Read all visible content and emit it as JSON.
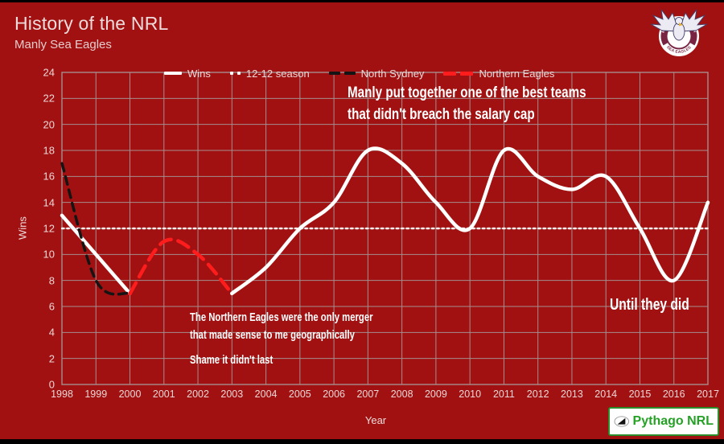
{
  "page": {
    "title": "History of the NRL",
    "subtitle": "Manly Sea Eagles"
  },
  "branding": {
    "team_badge_icon": "manly-sea-eagles-badge",
    "badge_top_text": "MANLY WARRINGAH",
    "badge_bottom_text": "SEA EAGLES",
    "watermark_icon": "triangle-ellipse-logo",
    "watermark_text": "Pythago NRL"
  },
  "chart_data": {
    "type": "line",
    "title": "History of the NRL",
    "subtitle": "Manly Sea Eagles",
    "xlabel": "Year",
    "ylabel": "Wins",
    "x_range": [
      1998,
      2017
    ],
    "ylim": [
      0,
      24
    ],
    "x_ticks": [
      1998,
      1999,
      2000,
      2001,
      2002,
      2003,
      2004,
      2005,
      2006,
      2007,
      2008,
      2009,
      2010,
      2011,
      2012,
      2013,
      2014,
      2015,
      2016,
      2017
    ],
    "y_ticks": [
      0,
      2,
      4,
      6,
      8,
      10,
      12,
      14,
      16,
      18,
      20,
      22,
      24
    ],
    "grid": true,
    "legend_position": "top",
    "colors": {
      "background": "#a11111",
      "grid": "#a58e8e",
      "wins": "#ffffff",
      "twelve_line": "#f7eded",
      "north_sydney": "#141414",
      "northern_eagles": "#ff1c1c"
    },
    "series": [
      {
        "name": "12-12 season",
        "color": "#f7eded",
        "style": "dot",
        "width": 2.4,
        "smooth": false,
        "x": [
          1998,
          2017
        ],
        "values": [
          12,
          12
        ]
      },
      {
        "name": "Wins",
        "color": "#ffffff",
        "style": "solid",
        "width": 4.5,
        "smooth": true,
        "x": [
          1998,
          1999,
          2000,
          2001,
          2002,
          2003,
          2004,
          2005,
          2006,
          2007,
          2008,
          2009,
          2010,
          2011,
          2012,
          2013,
          2014,
          2015,
          2016,
          2017
        ],
        "values": [
          13,
          10,
          7,
          null,
          null,
          7,
          9,
          12,
          14,
          18,
          17,
          14,
          12,
          18,
          16,
          15,
          16,
          12,
          8,
          14
        ]
      },
      {
        "name": "North Sydney",
        "color": "#141414",
        "style": "dash",
        "width": 3.5,
        "smooth": true,
        "x": [
          1998,
          1999,
          2000
        ],
        "values": [
          17,
          8,
          7
        ]
      },
      {
        "name": "Northern Eagles",
        "color": "#ff1c1c",
        "style": "longdash",
        "width": 4.5,
        "smooth": true,
        "x": [
          2000,
          2001,
          2002,
          2003
        ],
        "values": [
          7,
          11,
          10,
          7
        ]
      }
    ],
    "legend": [
      {
        "label": "Wins",
        "swatch": "solid",
        "color": "#ffffff"
      },
      {
        "label": "12-12 season",
        "swatch": "dot",
        "color": "#ffffff"
      },
      {
        "label": "North Sydney",
        "swatch": "dash",
        "color": "#141414"
      },
      {
        "label": "Northern Eagles",
        "swatch": "longdash",
        "color": "#ff1c1c"
      }
    ],
    "annotations": [
      {
        "lines": [
          "Manly put together one of the best teams",
          "that didn't breach the salary cap"
        ]
      },
      {
        "lines": [
          "The Northern Eagles were the only merger",
          "that made sense to me geographically"
        ]
      },
      {
        "lines": [
          "Shame it didn't last"
        ]
      },
      {
        "lines": [
          "Until they did"
        ]
      }
    ]
  }
}
